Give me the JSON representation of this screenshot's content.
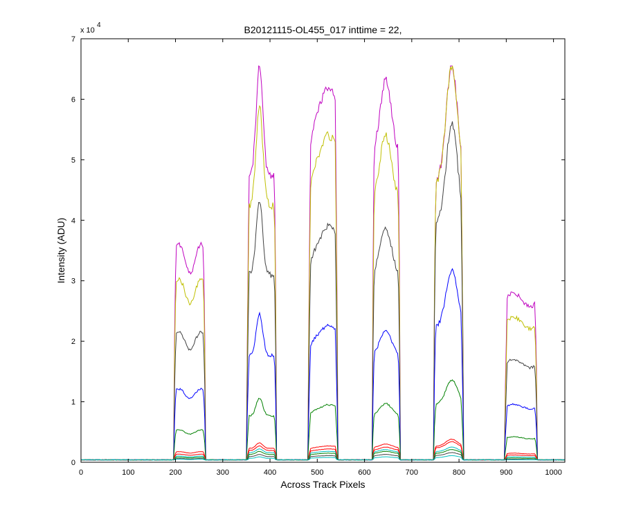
{
  "chart_data": {
    "type": "line",
    "title": "B20121115-OL455_017 inttime = 22,",
    "xlabel": "Across Track Pixels",
    "ylabel": "Intensity (ADU)",
    "xlim": [
      0,
      1024
    ],
    "ylim": [
      0,
      70000
    ],
    "y_exponent_label": "x 10",
    "y_exponent_power": "4",
    "x_ticks": [
      0,
      100,
      200,
      300,
      400,
      500,
      600,
      700,
      800,
      900,
      1000
    ],
    "y_ticks": [
      0,
      1,
      2,
      3,
      4,
      5,
      6,
      7
    ],
    "background_level": 400,
    "saturation_level": 65500,
    "bands": [
      [
        197,
        263
      ],
      [
        352,
        413
      ],
      [
        482,
        542
      ],
      [
        617,
        675
      ],
      [
        747,
        808
      ],
      [
        898,
        965
      ]
    ],
    "series": [
      {
        "color": "#bf00bf",
        "plateau_values": [
          35000,
          65500,
          62000,
          63000,
          65500,
          28000
        ]
      },
      {
        "color": "#bfbf00",
        "plateau_values": [
          29500,
          59000,
          54000,
          54000,
          65500,
          24000
        ]
      },
      {
        "color": "#404040",
        "plateau_values": [
          21000,
          43000,
          39000,
          38500,
          56000,
          17000
        ]
      },
      {
        "color": "#0000ff",
        "plateau_values": [
          11800,
          24500,
          22700,
          21800,
          31800,
          9600
        ]
      },
      {
        "color": "#008000",
        "plateau_values": [
          5200,
          10600,
          9500,
          9700,
          13600,
          4200
        ]
      },
      {
        "color": "#ff0000",
        "plateau_values": [
          1700,
          3200,
          2700,
          3000,
          3800,
          1500
        ]
      },
      {
        "color": "#ff0000",
        "plateau_values": [
          1300,
          2700,
          2200,
          2500,
          3400,
          1200
        ]
      },
      {
        "color": "#00bfbf",
        "plateau_values": [
          1000,
          2200,
          1800,
          2100,
          2500,
          900
        ]
      },
      {
        "color": "#008000",
        "plateau_values": [
          800,
          1800,
          1500,
          1800,
          2100,
          700
        ]
      },
      {
        "color": "#404040",
        "plateau_values": [
          600,
          1300,
          1100,
          1300,
          1600,
          500
        ]
      },
      {
        "color": "#00bfbf",
        "plateau_values": [
          500,
          900,
          800,
          900,
          1100,
          400
        ]
      }
    ]
  }
}
